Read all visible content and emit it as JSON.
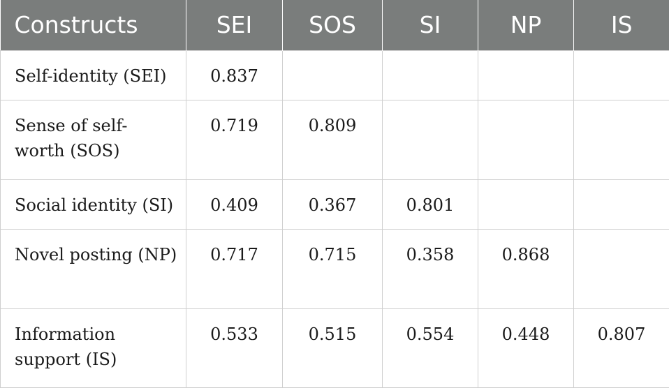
{
  "table": {
    "headers": [
      "Constructs",
      "SEI",
      "SOS",
      "SI",
      "NP",
      "IS"
    ],
    "rows": [
      {
        "label": "Self-identity (SEI)",
        "values": [
          "0.837",
          "",
          "",
          "",
          ""
        ]
      },
      {
        "label": "Sense of self-worth (SOS)",
        "values": [
          "0.719",
          "0.809",
          "",
          "",
          ""
        ]
      },
      {
        "label": "Social identity (SI)",
        "values": [
          "0.409",
          "0.367",
          "0.801",
          "",
          ""
        ]
      },
      {
        "label": "Novel posting (NP)",
        "values": [
          "0.717",
          "0.715",
          "0.358",
          "0.868",
          ""
        ]
      },
      {
        "label": "Information support (IS)",
        "values": [
          "0.533",
          "0.515",
          "0.554",
          "0.448",
          "0.807"
        ]
      }
    ]
  }
}
